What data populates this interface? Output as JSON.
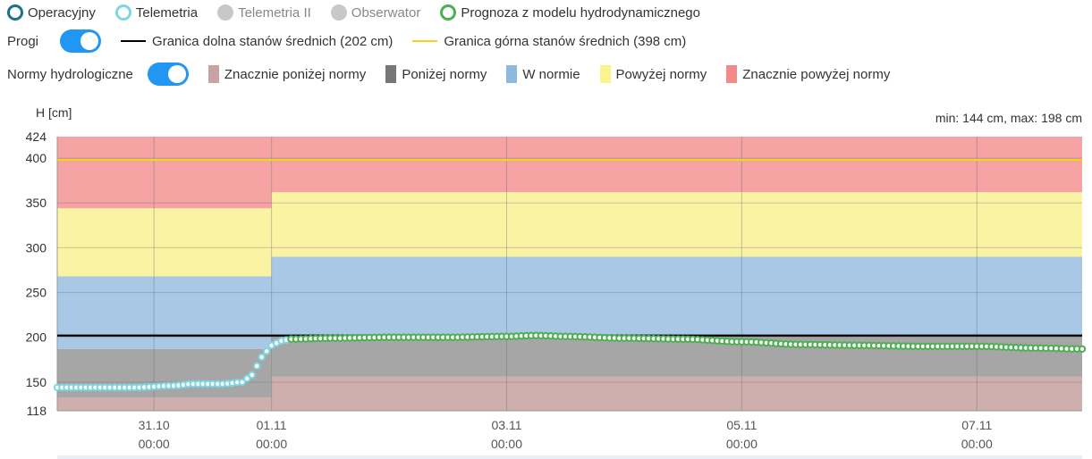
{
  "series_legend": [
    {
      "label": "Operacyjny",
      "color": "#1f6f8b",
      "style": "ring",
      "active": true
    },
    {
      "label": "Telemetria",
      "color": "#7fd6e0",
      "style": "ring",
      "active": true
    },
    {
      "label": "Telemetria II",
      "color": "#c8c8c8",
      "style": "filled",
      "active": false
    },
    {
      "label": "Obserwator",
      "color": "#c8c8c8",
      "style": "filled",
      "active": false
    },
    {
      "label": "Prognoza z modelu hydrodynamicznego",
      "color": "#4caf50",
      "style": "ring",
      "active": true
    }
  ],
  "thresholds": {
    "toggle_label": "Progi",
    "enabled": true,
    "items": [
      {
        "label": "Granica dolna stanów średnich (202 cm)",
        "color": "#000000"
      },
      {
        "label": "Granica górna stanów średnich (398 cm)",
        "color": "#f2d21a"
      }
    ]
  },
  "norms": {
    "toggle_label": "Normy hydrologiczne",
    "enabled": true,
    "items": [
      {
        "label": "Znacznie poniżej normy",
        "color": "#c9a3a3"
      },
      {
        "label": "Poniżej normy",
        "color": "#777777"
      },
      {
        "label": "W normie",
        "color": "#8fb8e0"
      },
      {
        "label": "Powyżej normy",
        "color": "#fbf38c"
      },
      {
        "label": "Znacznie powyżej normy",
        "color": "#f28a8a"
      }
    ]
  },
  "summary": "min: 144 cm, max: 198 cm",
  "chart_data": {
    "type": "line",
    "ylabel": "H [cm]",
    "ylim": [
      118,
      424
    ],
    "yticks": [
      118,
      150,
      200,
      250,
      300,
      350,
      400,
      424
    ],
    "xlim": [
      "2025-10-30T04:15",
      "2025-11-07T21:30"
    ],
    "xticks": [
      {
        "x": "2025-10-31T00:00",
        "label": [
          "31.10",
          "00:00"
        ]
      },
      {
        "x": "2025-11-01T00:00",
        "label": [
          "01.11",
          "00:00"
        ]
      },
      {
        "x": "2025-11-03T00:00",
        "label": [
          "03.11",
          "00:00"
        ]
      },
      {
        "x": "2025-11-05T00:00",
        "label": [
          "05.11",
          "00:00"
        ]
      },
      {
        "x": "2025-11-07T00:00",
        "label": [
          "07.11",
          "00:00"
        ]
      }
    ],
    "norm_bands": [
      {
        "from": "2025-10-30T04:15",
        "to": "2025-11-01T00:00",
        "bounds": [
          118,
          133,
          187,
          268,
          344,
          424
        ]
      },
      {
        "from": "2025-11-01T00:00",
        "to": "2025-11-07T21:30",
        "bounds": [
          118,
          156,
          202,
          290,
          362,
          424
        ]
      }
    ],
    "threshold_lines": [
      {
        "name": "Granica dolna stanów średnich (202 cm)",
        "value": 202,
        "color": "#000000"
      },
      {
        "name": "Granica górna stanów średnich (398 cm)",
        "value": 398,
        "color": "#f2d21a"
      }
    ],
    "series": [
      {
        "name": "Telemetria",
        "color": "#7fd6e0",
        "points": [
          [
            "2025-10-30T04:15",
            144
          ],
          [
            "2025-10-30T12:00",
            144
          ],
          [
            "2025-10-30T20:00",
            144
          ],
          [
            "2025-10-31T04:00",
            146
          ],
          [
            "2025-10-31T08:00",
            148
          ],
          [
            "2025-10-31T14:00",
            148
          ],
          [
            "2025-10-31T18:00",
            150
          ],
          [
            "2025-10-31T20:00",
            158
          ],
          [
            "2025-10-31T22:00",
            178
          ],
          [
            "2025-11-01T00:00",
            191
          ],
          [
            "2025-11-01T02:00",
            196
          ],
          [
            "2025-11-01T04:00",
            198
          ]
        ]
      },
      {
        "name": "Prognoza z modelu hydrodynamicznego",
        "color": "#4caf50",
        "points": [
          [
            "2025-11-01T04:00",
            198
          ],
          [
            "2025-11-01T12:00",
            199
          ],
          [
            "2025-11-02T00:00",
            200
          ],
          [
            "2025-11-02T12:00",
            200
          ],
          [
            "2025-11-03T00:00",
            201
          ],
          [
            "2025-11-03T06:00",
            202
          ],
          [
            "2025-11-03T12:00",
            201
          ],
          [
            "2025-11-04T00:00",
            199
          ],
          [
            "2025-11-04T12:00",
            198
          ],
          [
            "2025-11-05T00:00",
            195
          ],
          [
            "2025-11-05T12:00",
            192
          ],
          [
            "2025-11-06T00:00",
            191
          ],
          [
            "2025-11-06T12:00",
            190
          ],
          [
            "2025-11-07T00:00",
            190
          ],
          [
            "2025-11-07T12:00",
            188
          ],
          [
            "2025-11-07T21:30",
            187
          ]
        ]
      }
    ]
  }
}
